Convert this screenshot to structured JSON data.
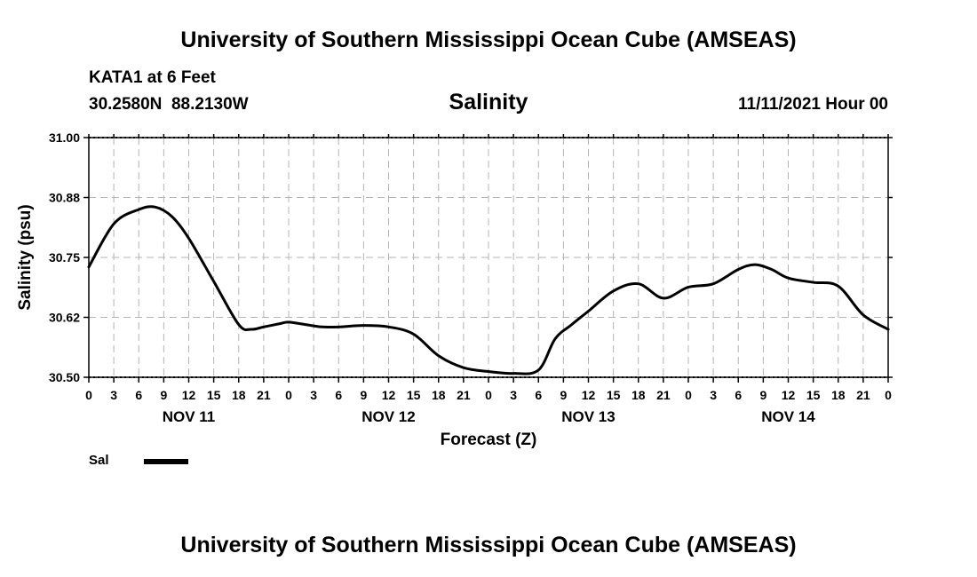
{
  "header": {
    "title": "University of Southern Mississippi Ocean Cube (AMSEAS)",
    "station": "KATA1 at 6 Feet",
    "coordinates": "30.2580N  88.2130W",
    "chart_title": "Salinity",
    "timestamp": "11/11/2021 Hour 00"
  },
  "footer": {
    "title": "University of Southern Mississippi Ocean Cube (AMSEAS)"
  },
  "legend": {
    "label": "Sal",
    "color": "#000000"
  },
  "chart_data": {
    "type": "line",
    "title": "Salinity",
    "xlabel": "Forecast (Z)",
    "ylabel": "Salinity (psu)",
    "ylim": [
      30.5,
      31.0
    ],
    "xlim": [
      0,
      96
    ],
    "grid": true,
    "x_tick_labels": [
      "0",
      "3",
      "6",
      "9",
      "12",
      "15",
      "18",
      "21",
      "0",
      "3",
      "6",
      "9",
      "12",
      "15",
      "18",
      "21",
      "0",
      "3",
      "6",
      "9",
      "12",
      "15",
      "18",
      "21",
      "0",
      "3",
      "6",
      "9",
      "12",
      "15",
      "18",
      "21",
      "0"
    ],
    "day_labels": [
      "NOV 11",
      "NOV 12",
      "NOV 13",
      "NOV 14"
    ],
    "y_tick_labels": [
      "31.00",
      "30.88",
      "30.75",
      "30.62",
      "30.50"
    ],
    "y_tick_values": [
      31.0,
      30.875,
      30.75,
      30.625,
      30.5
    ],
    "series": [
      {
        "name": "Sal",
        "color": "#000000",
        "x": [
          0,
          3,
          6,
          8,
          10,
          12,
          15,
          18,
          19.5,
          21,
          23,
          24,
          26,
          28,
          30,
          33,
          36,
          39,
          42,
          45,
          48,
          51,
          54,
          56,
          58,
          60,
          63,
          66,
          69,
          72,
          75,
          78,
          80,
          82,
          84,
          87,
          90,
          93,
          96
        ],
        "values": [
          30.73,
          30.82,
          30.85,
          30.855,
          30.835,
          30.79,
          30.7,
          30.61,
          30.6,
          30.605,
          30.612,
          30.615,
          30.61,
          30.605,
          30.605,
          30.608,
          30.605,
          30.59,
          30.545,
          30.52,
          30.512,
          30.508,
          30.515,
          30.58,
          30.61,
          30.638,
          30.68,
          30.695,
          30.665,
          30.688,
          30.695,
          30.725,
          30.735,
          30.725,
          30.707,
          30.698,
          30.69,
          30.63,
          30.6
        ]
      }
    ]
  }
}
